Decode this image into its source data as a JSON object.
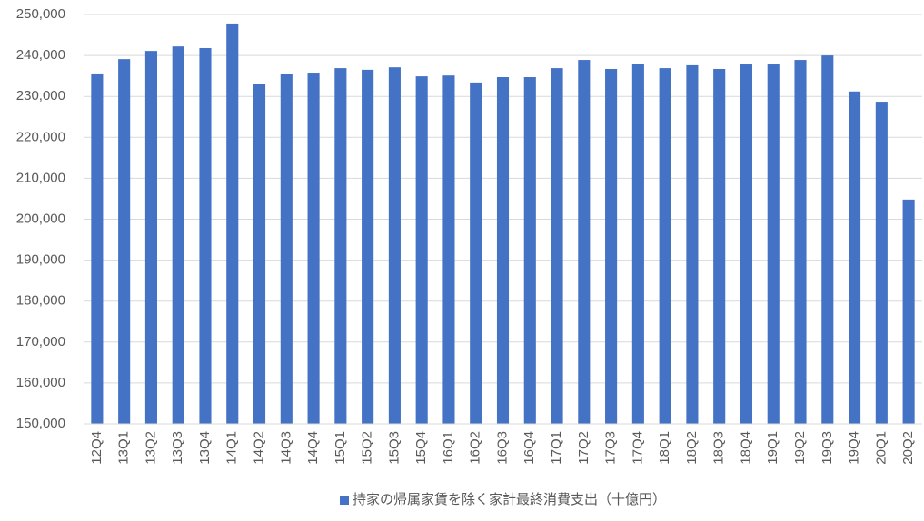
{
  "chart_data": {
    "type": "bar",
    "categories": [
      "12Q4",
      "13Q1",
      "13Q2",
      "13Q3",
      "13Q4",
      "14Q1",
      "14Q2",
      "14Q3",
      "14Q4",
      "15Q1",
      "15Q2",
      "15Q3",
      "15Q4",
      "16Q1",
      "16Q2",
      "16Q3",
      "16Q4",
      "17Q1",
      "17Q2",
      "17Q3",
      "17Q4",
      "18Q1",
      "18Q2",
      "18Q3",
      "18Q4",
      "19Q1",
      "19Q2",
      "19Q3",
      "19Q4",
      "20Q1",
      "20Q2"
    ],
    "series": [
      {
        "name": "持家の帰属家賃を除く家計最終消費支出（十億円）",
        "color": "#4472c4",
        "values": [
          235600,
          239100,
          241100,
          242200,
          241800,
          247800,
          233100,
          235400,
          235800,
          236900,
          236500,
          237100,
          234900,
          235100,
          233400,
          234700,
          234700,
          236900,
          238900,
          236700,
          238000,
          236900,
          237600,
          236700,
          237800,
          237800,
          238900,
          240000,
          231200,
          228700,
          204800
        ]
      }
    ],
    "ylim": [
      150000,
      250000
    ],
    "yticks": [
      {
        "value": 150000,
        "label": "150,000"
      },
      {
        "value": 160000,
        "label": "160,000"
      },
      {
        "value": 170000,
        "label": "170,000"
      },
      {
        "value": 180000,
        "label": "180,000"
      },
      {
        "value": 190000,
        "label": "190,000"
      },
      {
        "value": 200000,
        "label": "200,000"
      },
      {
        "value": 210000,
        "label": "210,000"
      },
      {
        "value": 220000,
        "label": "220,000"
      },
      {
        "value": 230000,
        "label": "230,000"
      },
      {
        "value": 240000,
        "label": "240,000"
      },
      {
        "value": 250000,
        "label": "250,000"
      }
    ],
    "grid": true,
    "legend": "bottom"
  }
}
